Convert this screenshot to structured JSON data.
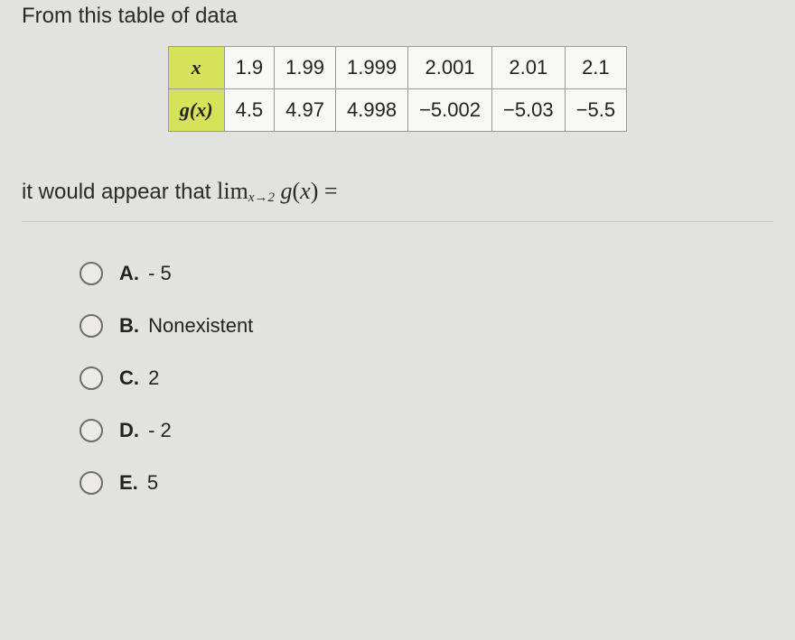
{
  "prompt_above": "From this table of data",
  "table": {
    "header_x": "x",
    "header_gx_pre": "g",
    "header_gx_var": "(x)",
    "x_vals": [
      "1.9",
      "1.99",
      "1.999",
      "2.001",
      "2.01",
      "2.1"
    ],
    "gx_vals": [
      "4.5",
      "4.97",
      "4.998",
      "−5.002",
      "−5.03",
      "−5.5"
    ],
    "highlight_color": "#d6e25a",
    "border_color": "#9a9a96",
    "cell_bg": "#f8f8f6"
  },
  "prompt_below_pre": "it would appear that ",
  "math": {
    "lim": "lim",
    "sub_var": "x",
    "sub_arrow": "→2",
    "g": " g",
    "paren": "(x)",
    "eq": " ="
  },
  "options": [
    {
      "letter": "A.",
      "text": " - 5"
    },
    {
      "letter": "B.",
      "text": " Nonexistent"
    },
    {
      "letter": "C.",
      "text": " 2"
    },
    {
      "letter": "D.",
      "text": " - 2"
    },
    {
      "letter": "E.",
      "text": " 5"
    }
  ],
  "colors": {
    "page_bg": "#e2e2df",
    "text": "#222222",
    "divider": "#c7c7c3",
    "radio_border": "#6d6d6b"
  }
}
